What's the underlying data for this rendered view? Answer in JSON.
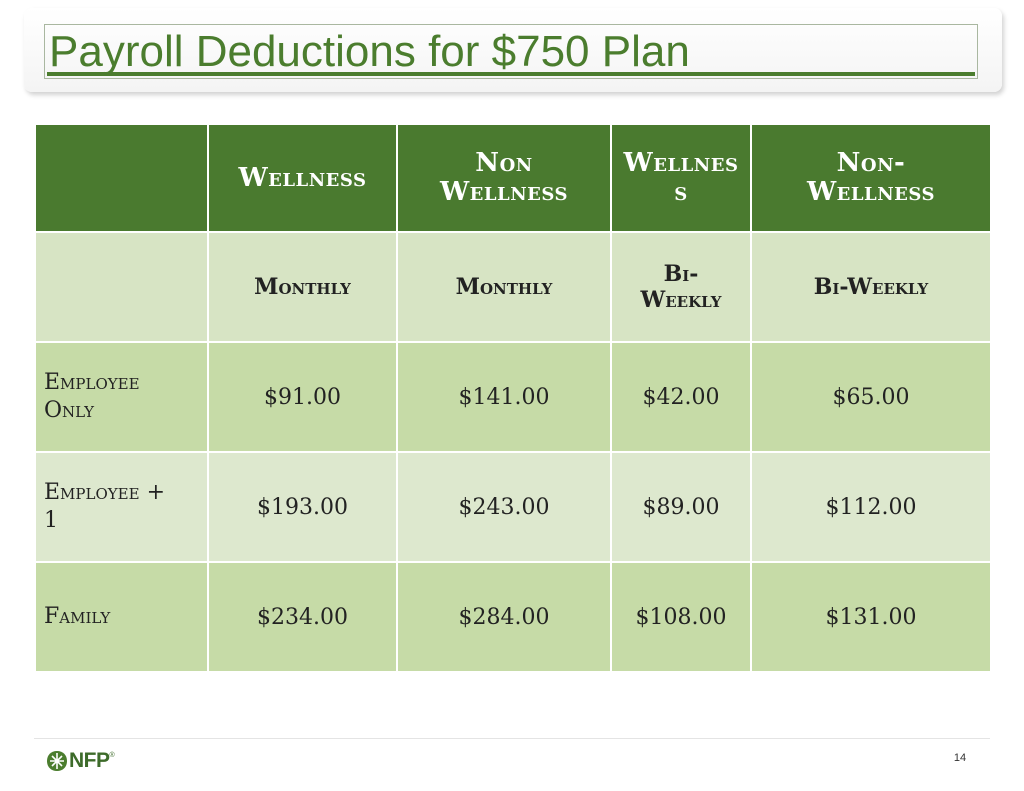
{
  "slide": {
    "title": "Payroll Deductions for $750 Plan",
    "page_number": "14",
    "logo_text": "NFP",
    "logo_reg": "®"
  },
  "table": {
    "headers": [
      "",
      "Wellness",
      "Non Wellness",
      "Wellnes s",
      "Non-Wellness"
    ],
    "subheaders": [
      "",
      "Monthly",
      "Monthly",
      "Bi-Weekly",
      "Bi-Weekly"
    ],
    "rows": [
      {
        "label": "Employee Only",
        "values": [
          "$91.00",
          "$141.00",
          "$42.00",
          "$65.00"
        ]
      },
      {
        "label": "Employee + 1",
        "values": [
          "$193.00",
          "$243.00",
          "$89.00",
          "$112.00"
        ]
      },
      {
        "label": "Family",
        "values": [
          "$234.00",
          "$284.00",
          "$108.00",
          "$131.00"
        ]
      }
    ]
  },
  "colors": {
    "header_green": "#4a7a2f",
    "title_green": "#4b7d2e",
    "row_dark": "#c6dba7",
    "row_light": "#dde8ce"
  }
}
